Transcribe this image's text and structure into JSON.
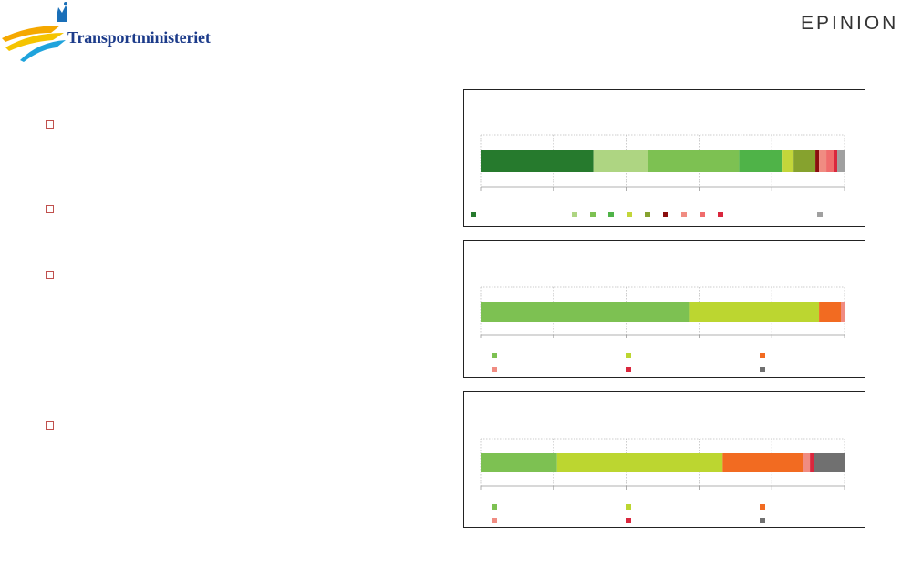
{
  "header": {
    "left_logo_text": "Transportministeriet",
    "right_logo_text": "EPINION"
  },
  "bullets": [
    {
      "top": 132
    },
    {
      "top": 225
    },
    {
      "top": 297
    },
    {
      "top": 462
    }
  ],
  "colors": {
    "border": "#222222",
    "grid": "#bfbfbf",
    "bullet": "#c0504d"
  },
  "chart_data": [
    {
      "type": "bar",
      "orientation": "horizontal",
      "stacked": true,
      "xlim": [
        0,
        100
      ],
      "grid": true,
      "segments": [
        {
          "value": 31,
          "color": "#267a2d"
        },
        {
          "value": 15,
          "color": "#aed582"
        },
        {
          "value": 25,
          "color": "#7dc152"
        },
        {
          "value": 12,
          "color": "#4fb348"
        },
        {
          "value": 3,
          "color": "#c3d63a"
        },
        {
          "value": 6,
          "color": "#86a22e"
        },
        {
          "value": 1,
          "color": "#8b0e0e"
        },
        {
          "value": 2,
          "color": "#f08c82"
        },
        {
          "value": 2,
          "color": "#f06c6c"
        },
        {
          "value": 1,
          "color": "#d9273d"
        },
        {
          "value": 2,
          "color": "#a0a0a0"
        }
      ],
      "legend": [
        {
          "color": "#267a2d"
        },
        {
          "color": "#aed582"
        },
        {
          "color": "#7dc152"
        },
        {
          "color": "#4fb348"
        },
        {
          "color": "#c3d63a"
        },
        {
          "color": "#86a22e"
        },
        {
          "color": "#8b0e0e"
        },
        {
          "color": "#f08c82"
        },
        {
          "color": "#f06c6c"
        },
        {
          "color": "#d9273d"
        },
        {
          "color": "#a0a0a0"
        }
      ]
    },
    {
      "type": "bar",
      "orientation": "horizontal",
      "stacked": true,
      "xlim": [
        0,
        100
      ],
      "grid": true,
      "segments": [
        {
          "value": 57.5,
          "color": "#7dc152"
        },
        {
          "value": 35.5,
          "color": "#bcd630"
        },
        {
          "value": 6,
          "color": "#f26b21"
        },
        {
          "value": 1,
          "color": "#f08c82"
        }
      ],
      "legend": [
        {
          "color": "#7dc152"
        },
        {
          "color": "#bcd630"
        },
        {
          "color": "#f26b21"
        },
        {
          "color": "#f08c82"
        },
        {
          "color": "#d9273d"
        },
        {
          "color": "#707070"
        }
      ]
    },
    {
      "type": "bar",
      "orientation": "horizontal",
      "stacked": true,
      "xlim": [
        0,
        100
      ],
      "grid": true,
      "segments": [
        {
          "value": 21,
          "color": "#7dc152"
        },
        {
          "value": 45.5,
          "color": "#bcd630"
        },
        {
          "value": 22,
          "color": "#f26b21"
        },
        {
          "value": 2,
          "color": "#f08c82"
        },
        {
          "value": 1,
          "color": "#d9273d"
        },
        {
          "value": 8.5,
          "color": "#707070"
        }
      ],
      "legend": [
        {
          "color": "#7dc152"
        },
        {
          "color": "#bcd630"
        },
        {
          "color": "#f26b21"
        },
        {
          "color": "#f08c82"
        },
        {
          "color": "#d9273d"
        },
        {
          "color": "#707070"
        }
      ]
    }
  ]
}
